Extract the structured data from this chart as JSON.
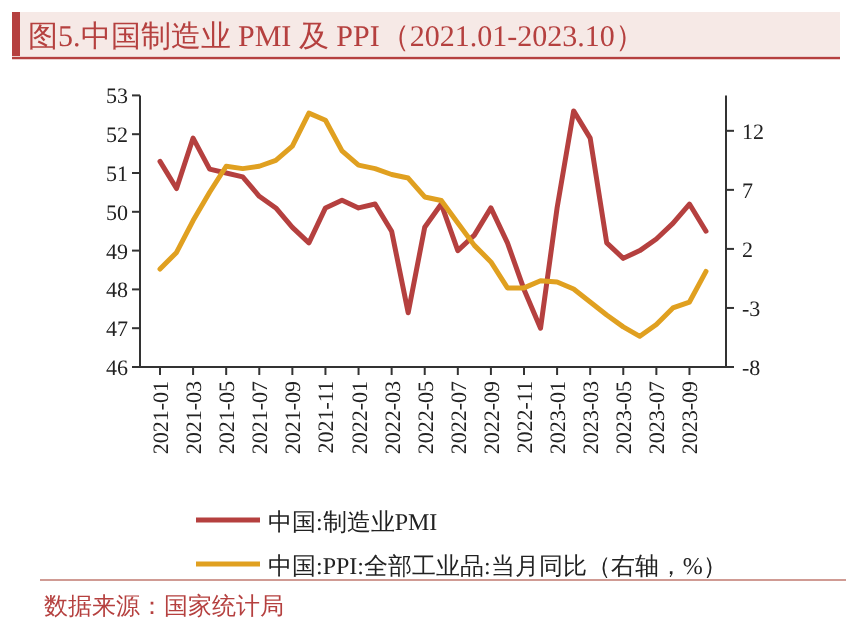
{
  "chart_data": {
    "type": "line",
    "title": "图5.中国制造业 PMI 及 PPI（2021.01-2023.10）",
    "categories": [
      "2021-01",
      null,
      "2021-03",
      null,
      "2021-05",
      null,
      "2021-07",
      null,
      "2021-09",
      null,
      "2021-11",
      null,
      "2022-01",
      null,
      "2022-03",
      null,
      "2022-05",
      null,
      "2022-07",
      null,
      "2022-09",
      null,
      "2022-11",
      null,
      "2023-01",
      null,
      "2023-03",
      null,
      "2023-05",
      null,
      "2023-07",
      null,
      "2023-09",
      null
    ],
    "series": [
      {
        "name": "中国:制造业PMI",
        "color": "#b5403f",
        "values": [
          51.3,
          50.6,
          51.9,
          51.1,
          51.0,
          50.9,
          50.4,
          50.1,
          49.6,
          49.2,
          50.1,
          50.3,
          50.1,
          50.2,
          49.5,
          47.4,
          49.6,
          50.2,
          49.0,
          49.4,
          50.1,
          49.2,
          48.0,
          47.0,
          50.1,
          52.6,
          51.9,
          49.2,
          48.8,
          49.0,
          49.3,
          49.7,
          50.2,
          49.5
        ]
      },
      {
        "name": "中国:PPI:全部工业品:当月同比（右轴，%）",
        "color": "#e0a020",
        "axis": "y2",
        "values": [
          0.3,
          1.7,
          4.4,
          6.8,
          9.0,
          8.8,
          9.0,
          9.5,
          10.7,
          13.5,
          12.9,
          10.3,
          9.1,
          8.8,
          8.3,
          8.0,
          6.4,
          6.1,
          4.2,
          2.3,
          0.9,
          -1.3,
          -1.3,
          -0.7,
          -0.8,
          -1.4,
          -2.5,
          -3.6,
          -4.6,
          -5.4,
          -4.4,
          -3.0,
          -2.5,
          0.1
        ]
      }
    ],
    "ylim": [
      46,
      53
    ],
    "yticks": [
      46,
      47,
      48,
      49,
      50,
      51,
      52,
      53
    ],
    "y2lim": [
      -8,
      15
    ],
    "y2ticks": [
      -8,
      -3,
      2,
      7,
      12
    ],
    "grid": false,
    "legend": "bottom",
    "marker": "none",
    "line_style": "solid",
    "annotations": [
      "数据来源：国家统计局"
    ]
  }
}
